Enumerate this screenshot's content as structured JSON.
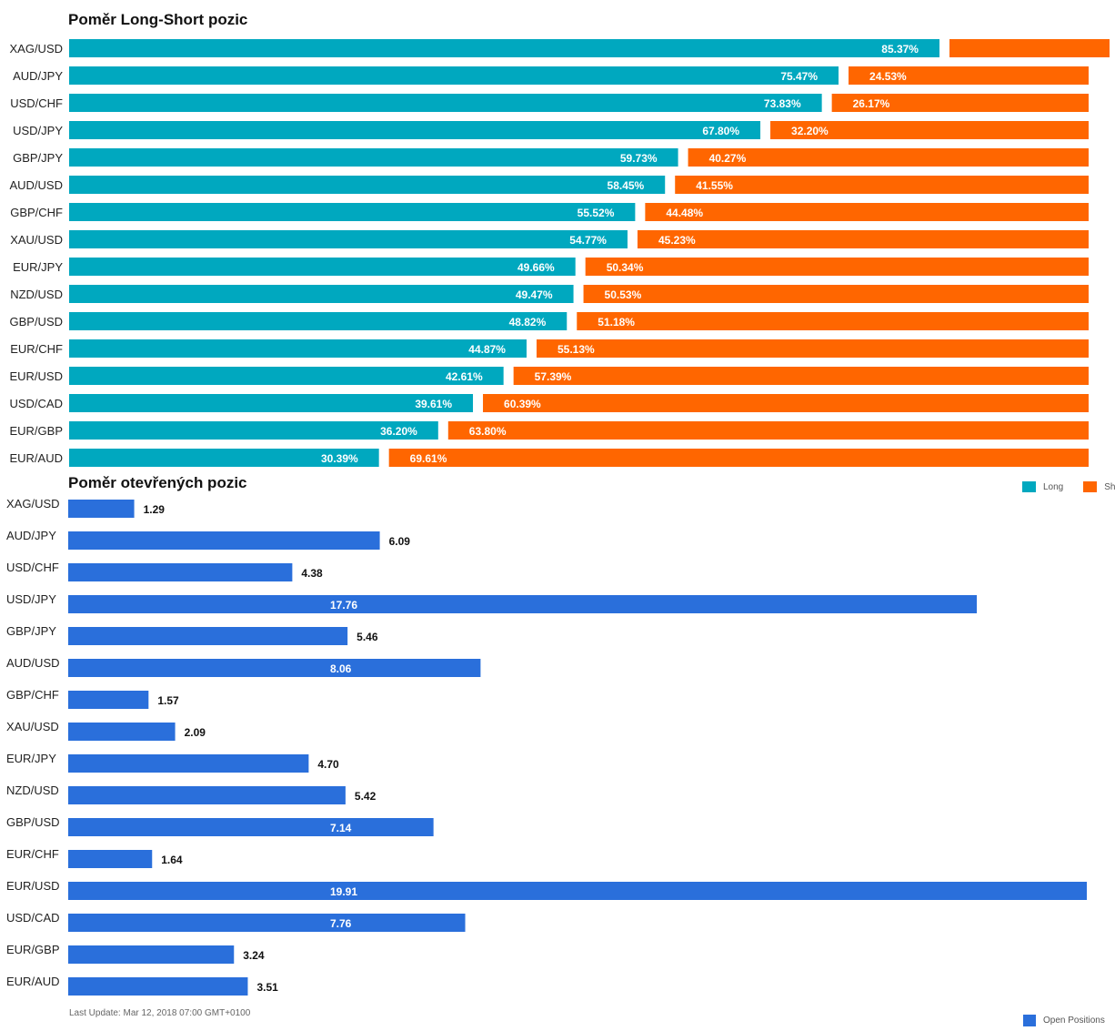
{
  "chart_data": [
    {
      "type": "bar",
      "orientation": "horizontal",
      "stacked": "percent",
      "title": "Poměr Long-Short pozic",
      "categories": [
        "XAG/USD",
        "AUD/JPY",
        "USD/CHF",
        "USD/JPY",
        "GBP/JPY",
        "AUD/USD",
        "GBP/CHF",
        "XAU/USD",
        "EUR/JPY",
        "NZD/USD",
        "GBP/USD",
        "EUR/CHF",
        "EUR/USD",
        "USD/CAD",
        "EUR/GBP",
        "EUR/AUD"
      ],
      "series": [
        {
          "name": "Long",
          "values": [
            85.37,
            75.47,
            73.83,
            67.8,
            59.73,
            58.45,
            55.52,
            54.77,
            49.66,
            49.47,
            48.82,
            44.87,
            42.61,
            39.61,
            36.2,
            30.39
          ],
          "labels": [
            "85.37%",
            "75.47%",
            "73.83%",
            "67.80%",
            "59.73%",
            "58.45%",
            "55.52%",
            "54.77%",
            "49.66%",
            "49.47%",
            "48.82%",
            "44.87%",
            "42.61%",
            "39.61%",
            "36.20%",
            "30.39%"
          ]
        },
        {
          "name": "Short",
          "values": [
            14.63,
            24.53,
            26.17,
            32.2,
            40.27,
            41.55,
            44.48,
            45.23,
            50.34,
            50.53,
            51.18,
            55.13,
            57.39,
            60.39,
            63.8,
            69.61
          ],
          "labels": [
            "",
            "24.53%",
            "26.17%",
            "32.20%",
            "40.27%",
            "41.55%",
            "44.48%",
            "45.23%",
            "50.34%",
            "50.53%",
            "51.18%",
            "55.13%",
            "57.39%",
            "60.39%",
            "63.80%",
            "69.61%"
          ]
        }
      ],
      "colors": {
        "Long": "#00a8bf",
        "Short": "#ff6600"
      },
      "legend": "bottom-right"
    },
    {
      "type": "bar",
      "orientation": "horizontal",
      "title": "Poměr otevřených pozic",
      "categories": [
        "XAG/USD",
        "AUD/JPY",
        "USD/CHF",
        "USD/JPY",
        "GBP/JPY",
        "AUD/USD",
        "GBP/CHF",
        "XAU/USD",
        "EUR/JPY",
        "NZD/USD",
        "GBP/USD",
        "EUR/CHF",
        "EUR/USD",
        "USD/CAD",
        "EUR/GBP",
        "EUR/AUD"
      ],
      "series": [
        {
          "name": "Open Positions",
          "values": [
            1.29,
            6.09,
            4.38,
            17.76,
            5.46,
            8.06,
            1.57,
            2.09,
            4.7,
            5.42,
            7.14,
            1.64,
            19.91,
            7.76,
            3.24,
            3.51
          ],
          "labels": [
            "1.29",
            "6.09",
            "4.38",
            "17.76",
            "5.46",
            "8.06",
            "1.57",
            "2.09",
            "4.70",
            "5.42",
            "7.14",
            "1.64",
            "19.91",
            "7.76",
            "3.24",
            "3.51"
          ]
        }
      ],
      "colors": {
        "Open Positions": "#2a6fdb"
      },
      "xlim": [
        0,
        19.91
      ],
      "legend": "bottom-right"
    }
  ],
  "footer": "Last Update: Mar 12, 2018 07:00 GMT+0100"
}
